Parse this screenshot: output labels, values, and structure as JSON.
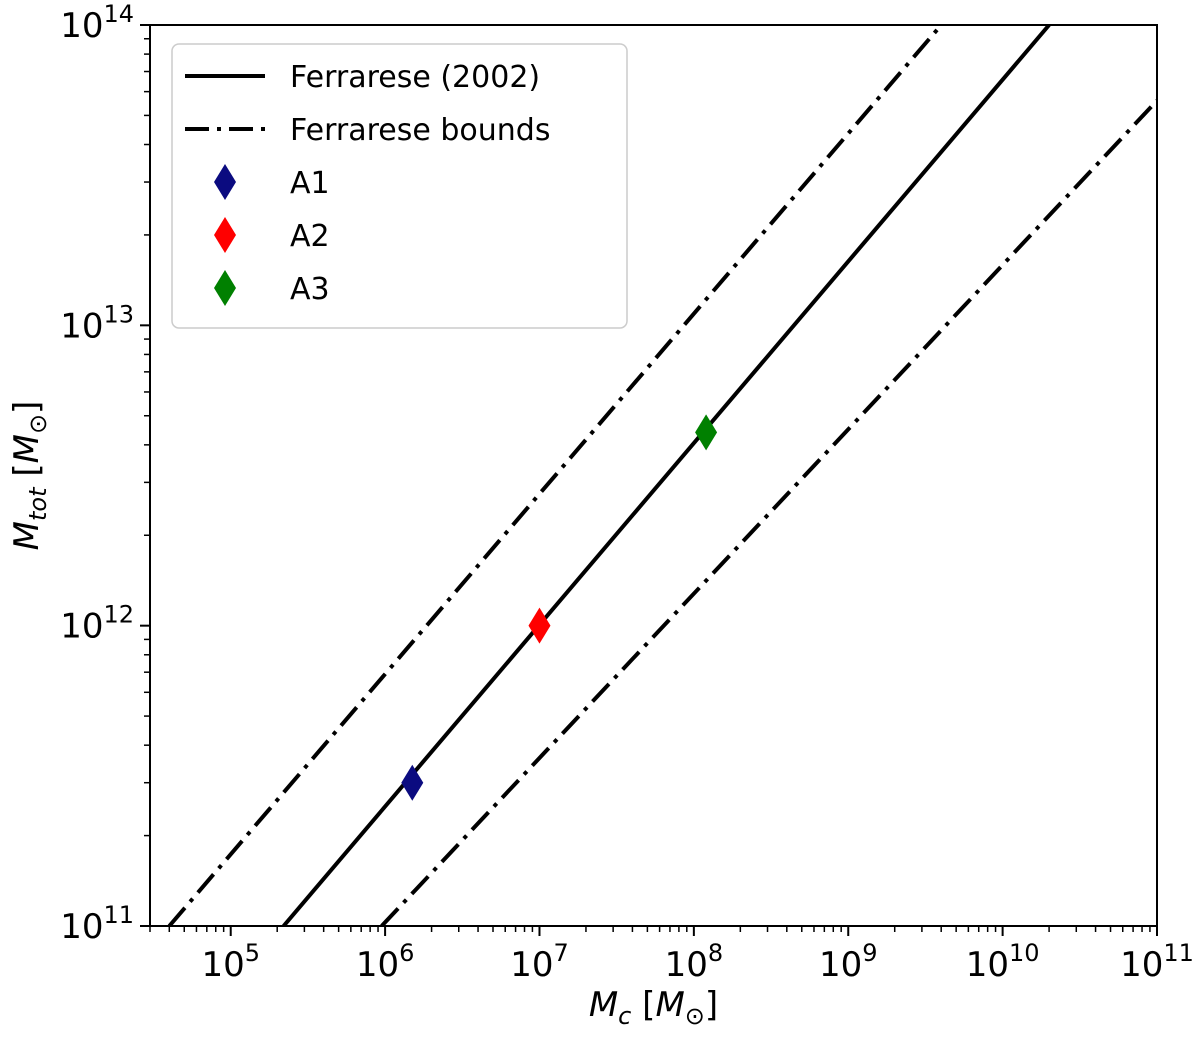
{
  "chart_data": {
    "type": "line",
    "xscale": "log",
    "yscale": "log",
    "xlim": [
      30000,
      100000000000
    ],
    "ylim": [
      100000000000,
      100000000000000
    ],
    "xlabel": {
      "main": "M",
      "sub": "c",
      "unit_open": "[",
      "unit_main": "M",
      "unit_sub": "⊙",
      "unit_close": "]"
    },
    "ylabel": {
      "main": "M",
      "sub": "tot",
      "unit_open": "[",
      "unit_main": "M",
      "unit_sub": "⊙",
      "unit_close": "]"
    },
    "x_ticks": [
      {
        "base": "10",
        "exp": "5",
        "value": 100000
      },
      {
        "base": "10",
        "exp": "6",
        "value": 1000000
      },
      {
        "base": "10",
        "exp": "7",
        "value": 10000000
      },
      {
        "base": "10",
        "exp": "8",
        "value": 100000000
      },
      {
        "base": "10",
        "exp": "9",
        "value": 1000000000
      },
      {
        "base": "10",
        "exp": "10",
        "value": 10000000000
      },
      {
        "base": "10",
        "exp": "11",
        "value": 100000000000
      }
    ],
    "y_ticks": [
      {
        "base": "10",
        "exp": "11",
        "value": 100000000000
      },
      {
        "base": "10",
        "exp": "12",
        "value": 1000000000000
      },
      {
        "base": "10",
        "exp": "13",
        "value": 10000000000000
      },
      {
        "base": "10",
        "exp": "14",
        "value": 100000000000000
      }
    ],
    "series": [
      {
        "name": "Ferrarese (2002)",
        "style": "solid",
        "color": "#000000",
        "x": [
          220000,
          20000000000
        ],
        "y": [
          100000000000,
          100000000000000
        ]
      },
      {
        "name": "Ferrarese bounds",
        "style": "dashdot",
        "color": "#000000",
        "x": [
          40000,
          4000000000
        ],
        "y": [
          100000000000,
          100000000000000
        ]
      },
      {
        "name": "",
        "style": "dashdot",
        "color": "#000000",
        "x": [
          950000,
          100000000000
        ],
        "y": [
          100000000000,
          56000000000000
        ]
      }
    ],
    "points": [
      {
        "name": "A1",
        "x": 1500000,
        "y": 300000000000,
        "color": "#0b0b80"
      },
      {
        "name": "A2",
        "x": 10000000,
        "y": 1000000000000,
        "color": "#ff0000"
      },
      {
        "name": "A3",
        "x": 120000000,
        "y": 4400000000000,
        "color": "#008000"
      }
    ],
    "legend": {
      "position": "top-left",
      "entries": [
        {
          "label": "Ferrarese (2002)",
          "kind": "solid-line"
        },
        {
          "label": "Ferrarese bounds",
          "kind": "dashdot-line"
        },
        {
          "label": "A1",
          "kind": "diamond",
          "color": "#0b0b80"
        },
        {
          "label": "A2",
          "kind": "diamond",
          "color": "#ff0000"
        },
        {
          "label": "A3",
          "kind": "diamond",
          "color": "#008000"
        }
      ]
    },
    "grid": false
  }
}
